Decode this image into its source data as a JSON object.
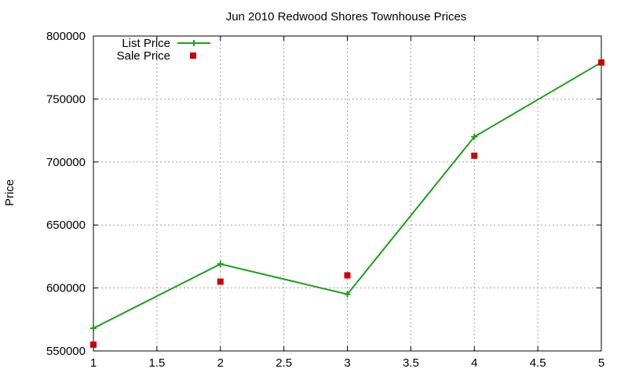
{
  "chart_data": {
    "type": "line",
    "title": "Jun 2010 Redwood Shores Townhouse Prices",
    "xlabel": "",
    "ylabel": "Price",
    "xlim": [
      1,
      5
    ],
    "ylim": [
      550000,
      800000
    ],
    "x_ticks": [
      1,
      1.5,
      2,
      2.5,
      3,
      3.5,
      4,
      4.5,
      5
    ],
    "y_ticks": [
      550000,
      600000,
      650000,
      700000,
      750000,
      800000
    ],
    "grid": true,
    "legend_position": "top-left",
    "series": [
      {
        "name": "List Price",
        "style": "linespoints",
        "marker": "plus",
        "color": "#1aa01a",
        "x": [
          1,
          2,
          3,
          4,
          5
        ],
        "y": [
          568000,
          619000,
          595000,
          720000,
          779000
        ]
      },
      {
        "name": "Sale Price",
        "style": "points",
        "marker": "square",
        "color": "#cc0000",
        "x": [
          1,
          2,
          3,
          4,
          5
        ],
        "y": [
          555000,
          605000,
          610000,
          705000,
          779000
        ]
      }
    ]
  }
}
